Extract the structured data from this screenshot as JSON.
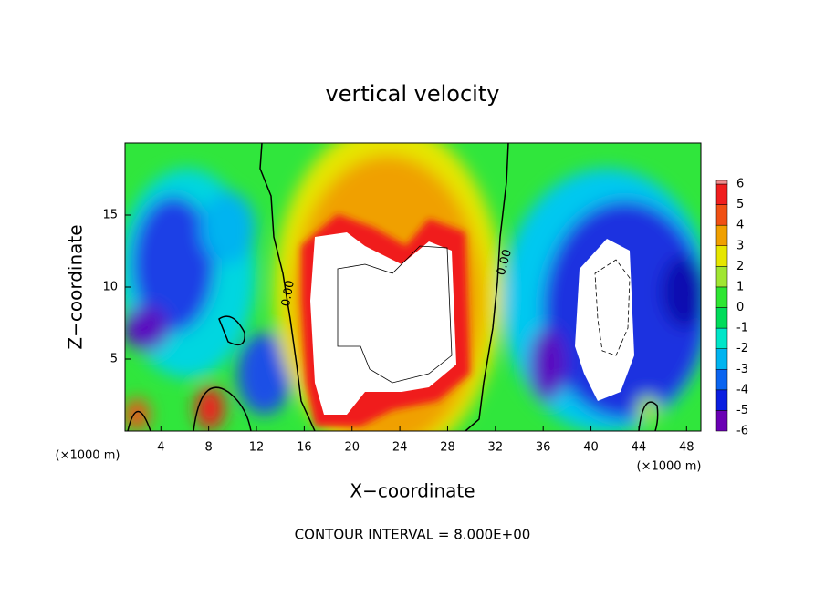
{
  "chart_data": {
    "type": "contour",
    "title": "vertical velocity",
    "x_label": "X−coordinate",
    "y_label": "Z−coordinate",
    "y_unit": "(×1000 m)",
    "x_unit": "(×1000 m)",
    "annotation": "CONTOUR INTERVAL = 8.000E+00",
    "contour_labels": [
      "0.00",
      "0.00"
    ],
    "xlim": [
      1,
      49.2
    ],
    "xticks": [
      4,
      8,
      12,
      16,
      20,
      24,
      28,
      32,
      36,
      40,
      44,
      48
    ],
    "ylim": [
      0,
      20
    ],
    "yticks": [
      5,
      10,
      15
    ],
    "colorbar": {
      "levels": [
        -6,
        -5,
        -4,
        -3,
        -2,
        -1,
        0,
        1,
        2,
        3,
        4,
        5,
        6
      ],
      "colors": [
        "#6a00b4",
        "#0a1ee0",
        "#0a64f0",
        "#00b4f0",
        "#00e6c8",
        "#00dc5a",
        "#2ee632",
        "#a0e632",
        "#e6e600",
        "#f0a000",
        "#f05014",
        "#f01e1e",
        "#f08c8c"
      ]
    }
  }
}
